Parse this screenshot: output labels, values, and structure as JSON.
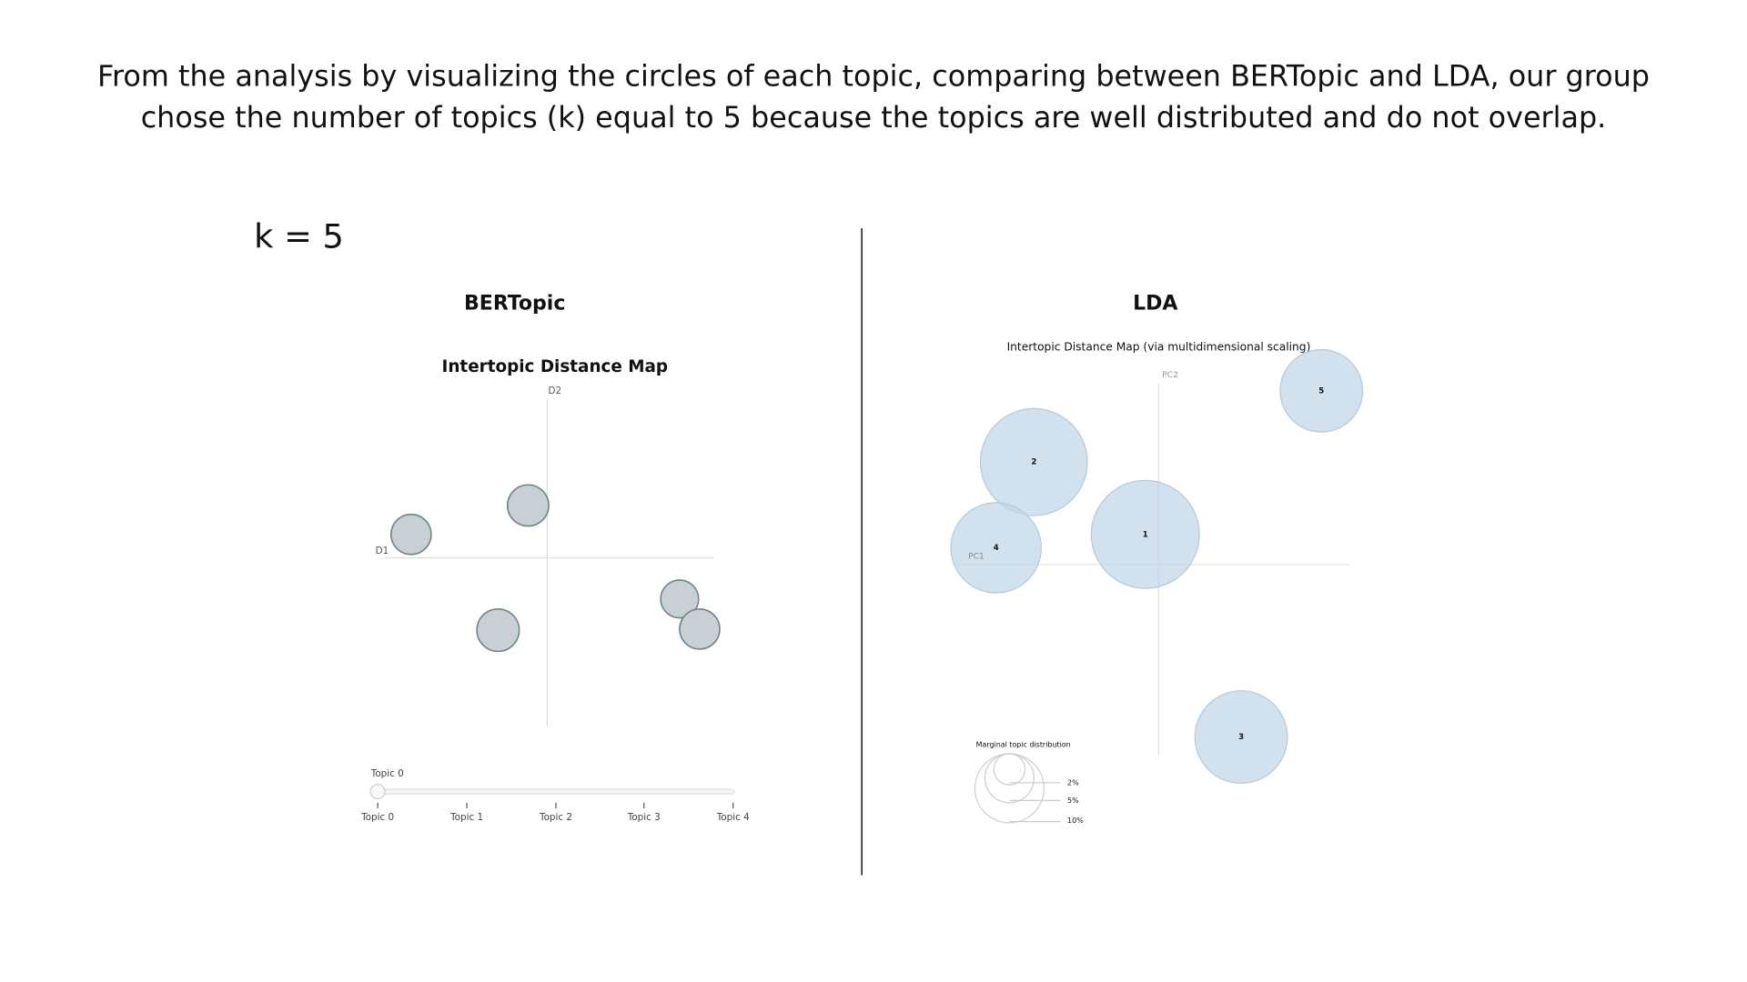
{
  "slide": {
    "text_lines": [
      "From the analysis by visualizing the circles of each topic, comparing between BERTopic and LDA, our group",
      "chose the number of topics (k) equal to 5 because the topics are well distributed and do not overlap."
    ],
    "k_label": "k = 5"
  },
  "bertopic": {
    "title": "BERTopic",
    "chart_title": "Intertopic Distance Map",
    "axis_y": "D2",
    "axis_x": "D1",
    "slider_label": "Topic 0",
    "slider_ticks": [
      "Topic 0",
      "Topic 1",
      "Topic 2",
      "Topic 3",
      "Topic 4"
    ]
  },
  "lda": {
    "title": "LDA",
    "chart_title": "Intertopic Distance Map (via multidimensional scaling)",
    "axis_y": "PC2",
    "axis_x": "PC1",
    "topics": [
      "1",
      "2",
      "3",
      "4",
      "5"
    ],
    "legend_title": "Marginal topic distribution",
    "legend_labels": [
      "2%",
      "5%",
      "10%"
    ]
  }
}
